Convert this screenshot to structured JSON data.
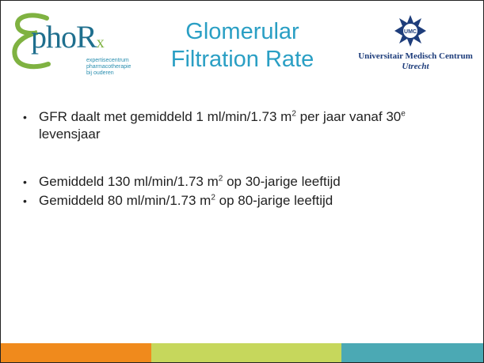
{
  "logo": {
    "name": "phoR",
    "sub": "x",
    "tagline": [
      "expertisecentrum",
      "pharmacotherapie",
      "bij ouderen"
    ]
  },
  "title": [
    "Glomerular",
    "Filtration Rate"
  ],
  "partner": {
    "icon": "UMC",
    "name": "Universitair Medisch Centrum",
    "city": "Utrecht"
  },
  "bullets": [
    [
      {
        "text": "GFR daalt met gemiddeld 1 ml/min/1.73 m"
      },
      {
        "sup": "2"
      },
      {
        "text": " per jaar vanaf 30"
      },
      {
        "sup": "e"
      },
      {
        "text": " levensjaar"
      }
    ],
    [
      {
        "text": "Gemiddeld 130 ml/min/1.73 m"
      },
      {
        "sup": "2"
      },
      {
        "text": " op 30-jarige leeftijd"
      }
    ],
    [
      {
        "text": "Gemiddeld 80 ml/min/1.73 m"
      },
      {
        "sup": "2"
      },
      {
        "text": " op 80-jarige leeftijd"
      }
    ]
  ]
}
